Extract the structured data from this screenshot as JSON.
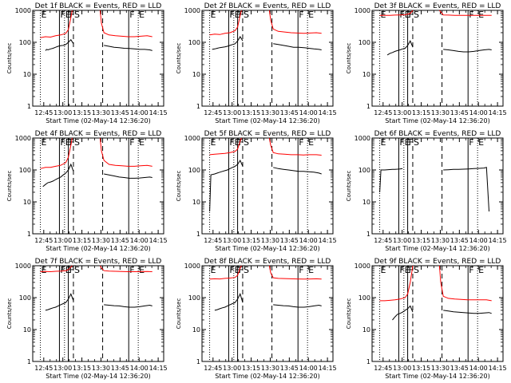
{
  "figure": {
    "ylabel": "Counts/sec",
    "xlabel": "Start Time (02-May-14 12:36:20)"
  },
  "chart_data": {
    "type": "line",
    "layout": "3x3 grid",
    "y_scale": "log",
    "ylim": [
      1,
      1000
    ],
    "y_tick_labels": [
      "1",
      "10",
      "100",
      "1000"
    ],
    "x_tick_labels": [
      "12:45",
      "13:00",
      "13:15",
      "13:30",
      "13:45",
      "14:00",
      "14:15"
    ],
    "x_unit": "minutes since 12:36:20",
    "xlim": [
      0,
      103
    ],
    "x_ticks": [
      8.67,
      23.67,
      38.67,
      53.67,
      68.67,
      83.67,
      98.67
    ],
    "interval_markers": [
      {
        "label": "E",
        "x": 6.0,
        "style": "dotted"
      },
      {
        "label": "F",
        "x": 21.0,
        "style": "solid"
      },
      {
        "label": "E",
        "x": 25.0,
        "style": "dotted"
      },
      {
        "label": "F",
        "x": 28.0,
        "style": "solid"
      },
      {
        "label": "S",
        "x": 32.0,
        "style": "dashed"
      },
      {
        "label": "",
        "x": 55.0,
        "style": "dashed"
      },
      {
        "label": "F",
        "x": 75.5,
        "style": "solid"
      },
      {
        "label": "E",
        "x": 83.0,
        "style": "dotted"
      }
    ],
    "series_colors": {
      "events": "#000000",
      "lld": "#ff0000"
    },
    "panels": [
      {
        "title": "Det 1f BLACK = Events, RED = LLD",
        "events": {
          "x": [
            10,
            11,
            12,
            14,
            16,
            18,
            20,
            22,
            24,
            26,
            28,
            30,
            32
          ],
          "y": [
            55,
            60,
            58,
            62,
            65,
            70,
            75,
            78,
            80,
            85,
            100,
            120,
            90
          ],
          "x2": [
            56,
            60,
            64,
            68,
            72,
            76,
            80,
            84,
            88,
            92,
            94
          ],
          "y2": [
            80,
            75,
            70,
            68,
            65,
            64,
            62,
            60,
            60,
            58,
            55
          ]
        },
        "lld": {
          "x": [
            6,
            10,
            14,
            18,
            22,
            26,
            28,
            30,
            31
          ],
          "y": [
            140,
            150,
            145,
            160,
            170,
            190,
            250,
            600,
            1000
          ],
          "x2": [
            53,
            54,
            56,
            60,
            65,
            70,
            75,
            80,
            85,
            90,
            94
          ],
          "y2": [
            1000,
            400,
            200,
            170,
            160,
            155,
            150,
            150,
            155,
            160,
            150
          ]
        }
      },
      {
        "title": "Det 2f BLACK = Events, RED = LLD",
        "events": {
          "x": [
            8,
            10,
            12,
            14,
            16,
            18,
            20,
            22,
            24,
            26,
            28,
            30,
            32
          ],
          "y": [
            60,
            62,
            65,
            68,
            70,
            72,
            75,
            80,
            85,
            90,
            110,
            150,
            110
          ],
          "x2": [
            56,
            60,
            64,
            68,
            72,
            76,
            80,
            84,
            88,
            92,
            94
          ],
          "y2": [
            90,
            85,
            80,
            75,
            70,
            70,
            68,
            65,
            62,
            60,
            58
          ]
        },
        "lld": {
          "x": [
            6,
            10,
            14,
            18,
            22,
            26,
            28,
            30,
            31
          ],
          "y": [
            170,
            180,
            175,
            190,
            200,
            230,
            300,
            700,
            1000
          ],
          "x2": [
            53,
            54,
            56,
            60,
            65,
            70,
            75,
            80,
            85,
            90,
            94
          ],
          "y2": [
            1000,
            500,
            260,
            220,
            210,
            200,
            195,
            190,
            195,
            200,
            190
          ]
        }
      },
      {
        "title": "Det 3f BLACK = Events, RED = LLD",
        "events": {
          "x": [
            12,
            14,
            16,
            18,
            20,
            22,
            24,
            26,
            28,
            30,
            32
          ],
          "y": [
            40,
            45,
            48,
            52,
            55,
            58,
            62,
            65,
            80,
            110,
            70
          ],
          "x2": [
            56,
            60,
            64,
            68,
            72,
            76,
            80,
            84,
            88,
            92,
            94
          ],
          "y2": [
            60,
            58,
            55,
            52,
            50,
            50,
            52,
            55,
            58,
            60,
            58
          ]
        },
        "lld": {
          "x": [
            6,
            10,
            14,
            18,
            22,
            26,
            30,
            32
          ],
          "y": [
            700,
            700,
            700,
            710,
            720,
            730,
            800,
            1000
          ],
          "x2": [
            53,
            56,
            60,
            65,
            70,
            75,
            80,
            85,
            90,
            94
          ],
          "y2": [
            1000,
            720,
            710,
            700,
            700,
            700,
            700,
            700,
            700,
            700
          ]
        }
      },
      {
        "title": "Det 4f BLACK = Events, RED = LLD",
        "events": {
          "x": [
            8,
            10,
            12,
            14,
            16,
            18,
            20,
            22,
            24,
            26,
            28,
            30,
            32
          ],
          "y": [
            30,
            35,
            40,
            42,
            45,
            50,
            55,
            60,
            70,
            80,
            100,
            150,
            90
          ],
          "x2": [
            56,
            60,
            64,
            68,
            72,
            76,
            80,
            84,
            88,
            92,
            94
          ],
          "y2": [
            75,
            70,
            65,
            60,
            58,
            55,
            55,
            56,
            58,
            60,
            58
          ]
        },
        "lld": {
          "x": [
            6,
            10,
            14,
            18,
            22,
            26,
            28,
            30,
            31
          ],
          "y": [
            110,
            120,
            120,
            130,
            140,
            170,
            250,
            600,
            1000
          ],
          "x2": [
            53,
            54,
            56,
            60,
            65,
            70,
            75,
            80,
            85,
            90,
            94
          ],
          "y2": [
            1000,
            400,
            200,
            150,
            140,
            135,
            130,
            130,
            135,
            140,
            130
          ]
        }
      },
      {
        "title": "Det 5f BLACK = Events, RED = LLD",
        "events": {
          "x": [
            6,
            7,
            10,
            12,
            14,
            16,
            18,
            20,
            22,
            24,
            26,
            28,
            30,
            32
          ],
          "y": [
            5,
            70,
            75,
            80,
            85,
            90,
            95,
            100,
            110,
            120,
            130,
            150,
            200,
            130
          ],
          "x2": [
            56,
            60,
            64,
            68,
            72,
            76,
            80,
            84,
            88,
            92,
            94
          ],
          "y2": [
            120,
            110,
            105,
            100,
            95,
            90,
            90,
            88,
            85,
            80,
            75
          ]
        },
        "lld": {
          "x": [
            6,
            10,
            14,
            18,
            22,
            26,
            28,
            30,
            31
          ],
          "y": [
            300,
            310,
            320,
            330,
            350,
            380,
            450,
            800,
            1000
          ],
          "x2": [
            53,
            54,
            56,
            60,
            65,
            70,
            75,
            80,
            85,
            90,
            94
          ],
          "y2": [
            1000,
            600,
            350,
            320,
            310,
            300,
            300,
            295,
            300,
            300,
            290
          ]
        }
      },
      {
        "title": "Det 6f BLACK = Events, RED = LLD",
        "events": {
          "x": [
            6,
            7,
            10,
            12,
            14,
            16,
            18,
            20,
            22,
            24
          ],
          "y": [
            20,
            100,
            100,
            102,
            103,
            104,
            105,
            106,
            108,
            110
          ],
          "x2": [
            56,
            60,
            64,
            68,
            72,
            76,
            80,
            84,
            88,
            90,
            92
          ],
          "y2": [
            100,
            102,
            104,
            105,
            106,
            108,
            110,
            112,
            115,
            120,
            5
          ]
        },
        "lld": {
          "x": [],
          "y": [],
          "x2": [],
          "y2": []
        }
      },
      {
        "title": "Det 7f BLACK = Events, RED = LLD",
        "events": {
          "x": [
            10,
            12,
            14,
            16,
            18,
            20,
            22,
            24,
            26,
            28,
            30,
            32
          ],
          "y": [
            40,
            42,
            45,
            48,
            50,
            55,
            60,
            65,
            70,
            90,
            130,
            80
          ],
          "x2": [
            56,
            60,
            64,
            68,
            72,
            76,
            80,
            84,
            88,
            92,
            94
          ],
          "y2": [
            60,
            58,
            56,
            55,
            52,
            50,
            50,
            52,
            55,
            58,
            55
          ]
        },
        "lld": {
          "x": [
            6,
            10,
            14,
            18,
            22,
            26,
            28,
            30,
            31
          ],
          "y": [
            650,
            660,
            650,
            670,
            680,
            700,
            750,
            900,
            1000
          ],
          "x2": [
            53,
            54,
            56,
            60,
            65,
            70,
            75,
            80,
            85,
            90,
            94
          ],
          "y2": [
            1000,
            850,
            700,
            680,
            670,
            660,
            650,
            650,
            655,
            660,
            650
          ]
        }
      },
      {
        "title": "Det 8f BLACK = Events, RED = LLD",
        "events": {
          "x": [
            10,
            12,
            14,
            16,
            18,
            20,
            22,
            24,
            26,
            28,
            30,
            32
          ],
          "y": [
            40,
            42,
            45,
            48,
            50,
            55,
            60,
            65,
            70,
            90,
            130,
            70
          ],
          "x2": [
            56,
            60,
            64,
            68,
            72,
            76,
            80,
            84,
            88,
            92,
            94
          ],
          "y2": [
            60,
            58,
            56,
            55,
            52,
            50,
            50,
            52,
            55,
            58,
            55
          ]
        },
        "lld": {
          "x": [
            6,
            10,
            14,
            18,
            22,
            26,
            28,
            30,
            31
          ],
          "y": [
            380,
            390,
            385,
            400,
            410,
            430,
            500,
            850,
            1000
          ],
          "x2": [
            53,
            54,
            56,
            60,
            65,
            70,
            75,
            80,
            85,
            90,
            94
          ],
          "y2": [
            1000,
            600,
            420,
            400,
            395,
            390,
            385,
            380,
            385,
            390,
            380
          ]
        }
      },
      {
        "title": "Det 9f BLACK = Events, RED = LLD",
        "events": {
          "x": [
            16,
            18,
            20,
            22,
            24,
            26,
            28,
            30,
            32
          ],
          "y": [
            20,
            25,
            30,
            32,
            35,
            40,
            45,
            55,
            35
          ],
          "x2": [
            56,
            60,
            64,
            68,
            72,
            76,
            80,
            84,
            88,
            92,
            94
          ],
          "y2": [
            40,
            38,
            36,
            35,
            34,
            33,
            32,
            32,
            33,
            34,
            32
          ]
        },
        "lld": {
          "x": [
            6,
            10,
            14,
            18,
            22,
            26,
            28,
            30,
            32
          ],
          "y": [
            80,
            80,
            82,
            85,
            90,
            100,
            130,
            300,
            1000
          ],
          "x2": [
            53,
            54,
            56,
            60,
            65,
            70,
            75,
            80,
            85,
            90,
            94
          ],
          "y2": [
            1000,
            300,
            110,
            95,
            90,
            88,
            85,
            85,
            85,
            85,
            80
          ]
        }
      }
    ]
  }
}
